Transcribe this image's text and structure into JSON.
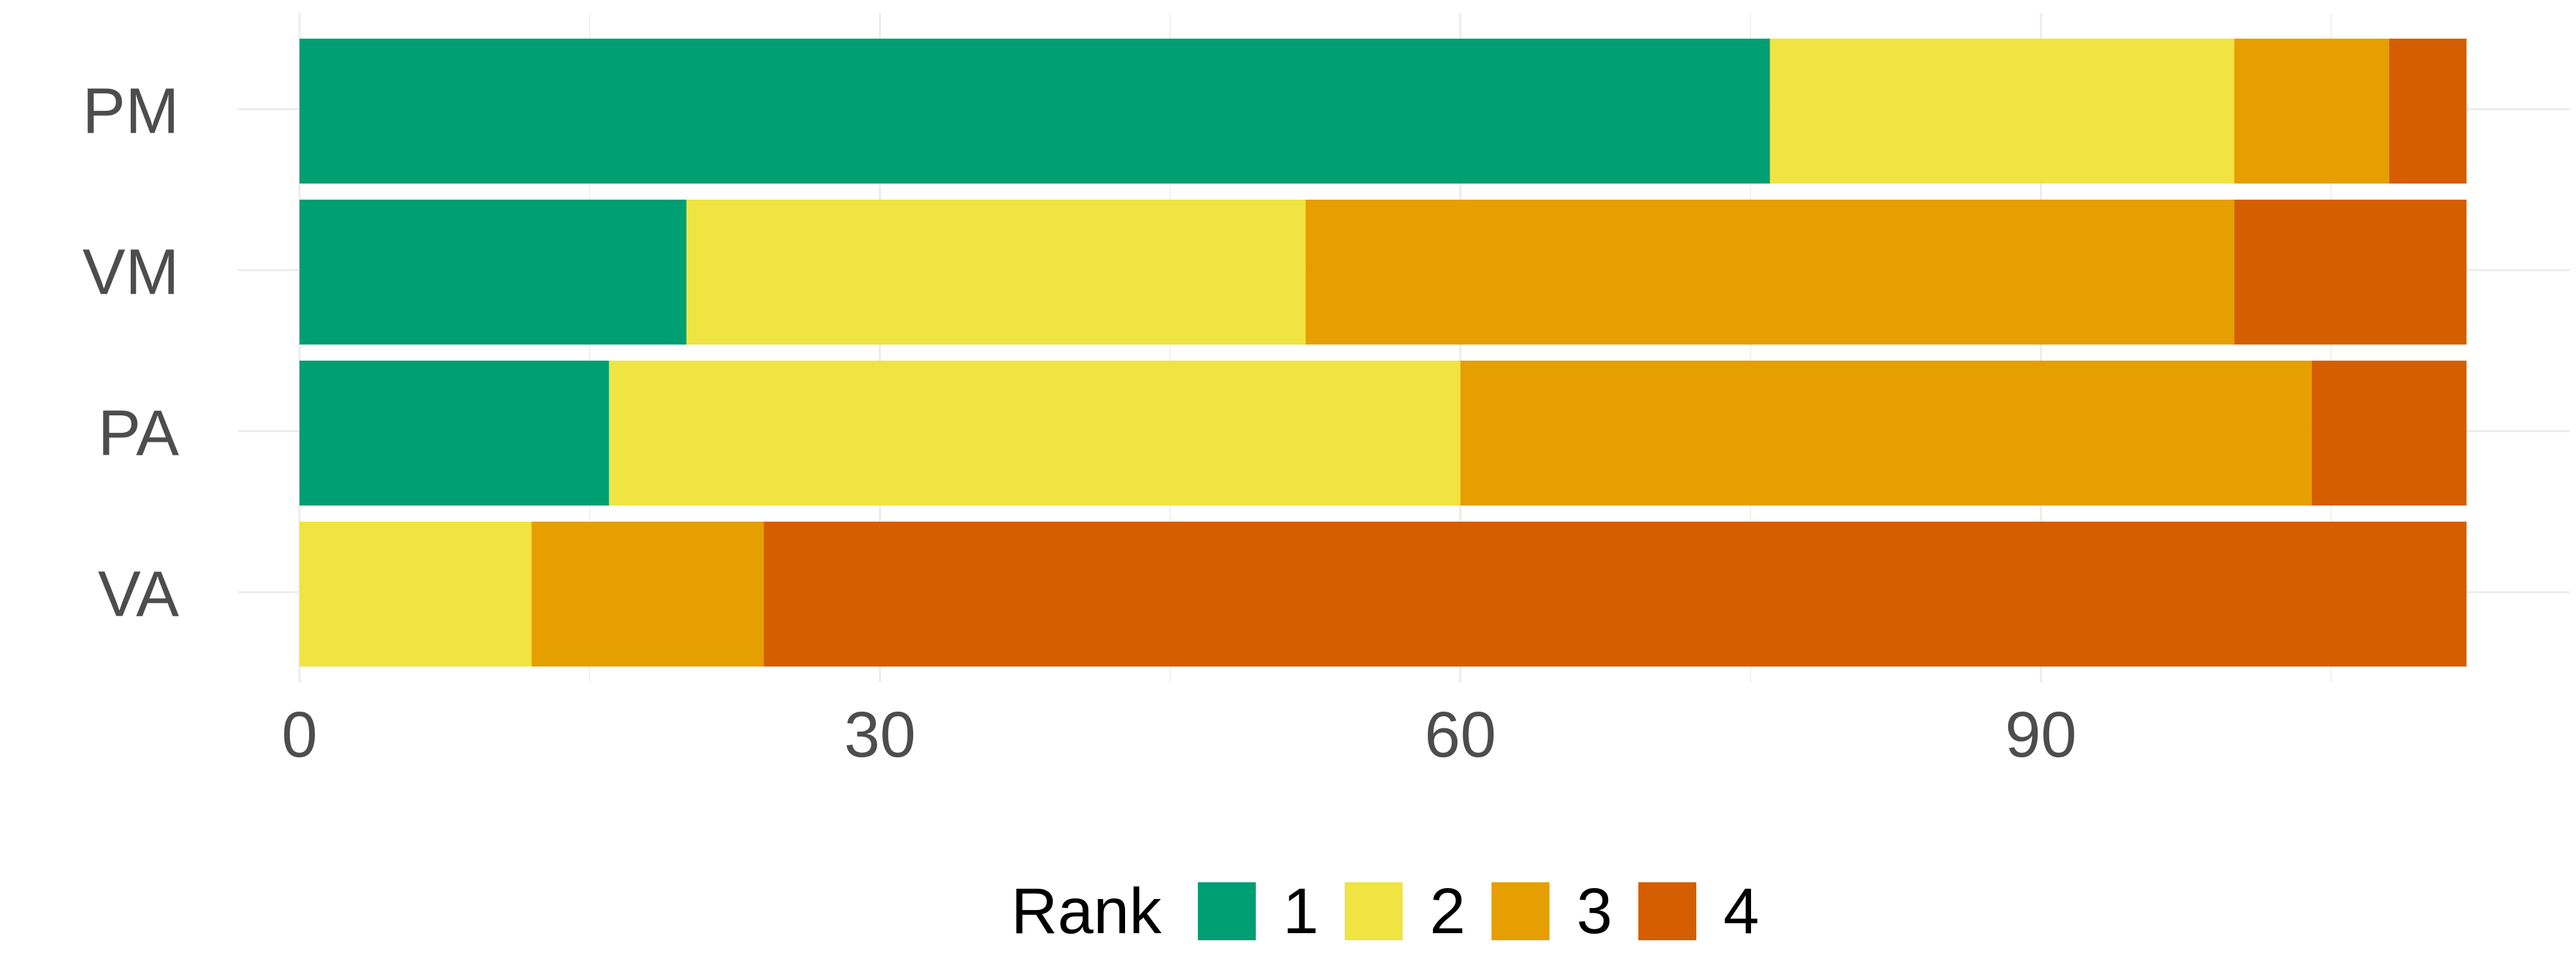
{
  "chart_data": {
    "type": "bar",
    "orientation": "horizontal",
    "stacked": true,
    "categories": [
      "PM",
      "VM",
      "PA",
      "VA"
    ],
    "series": [
      {
        "name": "1",
        "values": [
          76,
          20,
          16,
          0
        ],
        "color": "#009E73"
      },
      {
        "name": "2",
        "values": [
          24,
          32,
          44,
          12
        ],
        "color": "#F0E442"
      },
      {
        "name": "3",
        "values": [
          8,
          48,
          44,
          12
        ],
        "color": "#E69F00"
      },
      {
        "name": "4",
        "values": [
          4,
          12,
          8,
          88
        ],
        "color": "#D55E00"
      }
    ],
    "xlim": [
      0,
      112
    ],
    "x_ticks": [
      0,
      30,
      60,
      90
    ],
    "x_tick_labels": [
      "0",
      "30",
      "60",
      "90"
    ],
    "legend": {
      "title": "Rank",
      "position": "bottom"
    },
    "grid": true
  }
}
